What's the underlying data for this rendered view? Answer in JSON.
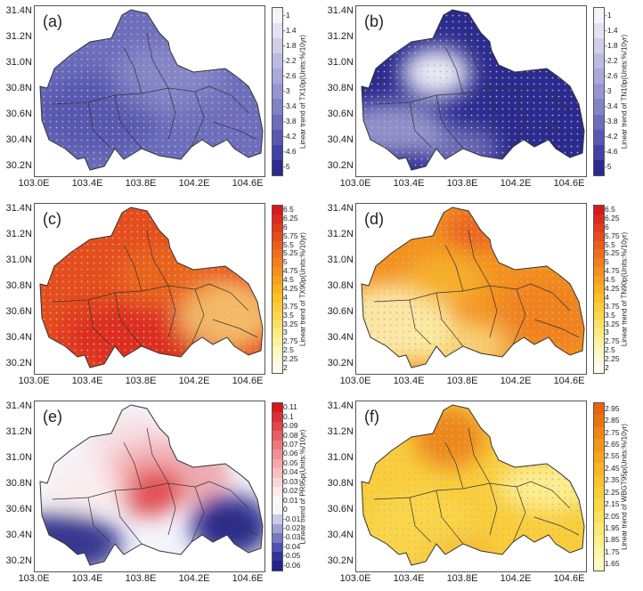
{
  "lat_ticks": [
    "31.4N",
    "31.2N",
    "31.0N",
    "30.8N",
    "30.6N",
    "30.4N",
    "30.2N"
  ],
  "lon_ticks": [
    "103.0E",
    "103.4E",
    "103.8E",
    "104.2E",
    "104.6E"
  ],
  "panels": [
    {
      "label": "(a)",
      "title": "Linear trend of TX10p(Units:%/10yr)",
      "ticks": [
        "-1",
        "-1.4",
        "-1.8",
        "-2.2",
        "-2.6",
        "-3",
        "-3.4",
        "-3.8",
        "-4.2",
        "-4.6",
        "-5"
      ],
      "colors": [
        "#f4f4fa",
        "#e2e2f2",
        "#cfcfea",
        "#bcbce2",
        "#a9a9da",
        "#9696d1",
        "#8282c7",
        "#6d6dbd",
        "#5858b2",
        "#4242a6",
        "#2a2a90"
      ]
    },
    {
      "label": "(b)",
      "title": "Linear trend of TN10p(Units:%/10yr)",
      "ticks": [
        "-1",
        "-1.4",
        "-1.8",
        "-2.2",
        "-2.6",
        "-3",
        "-3.4",
        "-3.8",
        "-4.2",
        "-4.6",
        "-5"
      ],
      "colors": [
        "#f4f4fa",
        "#e2e2f2",
        "#cfcfea",
        "#bcbce2",
        "#a9a9da",
        "#9696d1",
        "#8282c7",
        "#6d6dbd",
        "#5858b2",
        "#4242a6",
        "#2a2a90"
      ]
    },
    {
      "label": "(c)",
      "title": "Linear trend of TX90p(Units:%/10yr)",
      "ticks": [
        "6.5",
        "6.25",
        "6",
        "5.75",
        "5.5",
        "5.25",
        "5",
        "4.75",
        "4.5",
        "4.25",
        "4",
        "3.75",
        "3.5",
        "3.25",
        "3",
        "2.75",
        "2.5",
        "2.25",
        "2"
      ],
      "colors": [
        "#d7191c",
        "#dc2a1c",
        "#e13b1c",
        "#e64c1c",
        "#ea5d1c",
        "#ee6e1c",
        "#f27f1c",
        "#f5901c",
        "#f8a11c",
        "#fab21e",
        "#fcc126",
        "#fdcc3a",
        "#fed650",
        "#fee068",
        "#feea82",
        "#fef19e",
        "#fef6bb",
        "#fffad6",
        "#fffdf0"
      ]
    },
    {
      "label": "(d)",
      "title": "Linear trend of TN90p(Units:%/10yr)",
      "ticks": [
        "6.5",
        "6.25",
        "6",
        "5.75",
        "5.5",
        "5.25",
        "5",
        "4.75",
        "4.5",
        "4.25",
        "4",
        "3.75",
        "3.5",
        "3.25",
        "3",
        "2.75",
        "2.5",
        "2.25",
        "2"
      ],
      "colors": [
        "#d7191c",
        "#dc2a1c",
        "#e13b1c",
        "#e64c1c",
        "#ea5d1c",
        "#ee6e1c",
        "#f27f1c",
        "#f5901c",
        "#f8a11c",
        "#fab21e",
        "#fcc126",
        "#fdcc3a",
        "#fed650",
        "#fee068",
        "#feea82",
        "#fef19e",
        "#fef6bb",
        "#fffad6",
        "#fffdf0"
      ]
    },
    {
      "label": "(e)",
      "title": "Linear trend of PR95p(Units:%/10yr)",
      "ticks": [
        "0.11",
        "0.1",
        "0.09",
        "0.08",
        "0.07",
        "0.06",
        "0.05",
        "0.04",
        "0.03",
        "0.02",
        "0.01",
        "0",
        "-0.01",
        "-0.02",
        "-0.03",
        "-0.04",
        "-0.05",
        "-0.06"
      ],
      "colors": [
        "#d7191c",
        "#dc3035",
        "#e1484c",
        "#e76064",
        "#ec787b",
        "#f19092",
        "#f5a8a9",
        "#f9c0c0",
        "#fcd6d6",
        "#feeaea",
        "#fff6f6",
        "#f4f4fb",
        "#c9cbe8",
        "#9ea2d5",
        "#7579c2",
        "#4f52ae",
        "#33349a",
        "#232385"
      ]
    },
    {
      "label": "(f)",
      "title": "Linear trend of WBGT95p(Units:%/10yr)",
      "ticks": [
        "2.95",
        "2.85",
        "2.75",
        "2.65",
        "2.55",
        "2.45",
        "2.35",
        "2.25",
        "2.15",
        "2.05",
        "1.95",
        "1.85",
        "1.75",
        "1.65"
      ],
      "colors": [
        "#e8630c",
        "#ec7410",
        "#f08514",
        "#f39618",
        "#f6a61e",
        "#f8b526",
        "#fac22e",
        "#fbcd38",
        "#fcd746",
        "#fde058",
        "#fee86e",
        "#fef087",
        "#fef6a4",
        "#fffac2"
      ]
    }
  ]
}
